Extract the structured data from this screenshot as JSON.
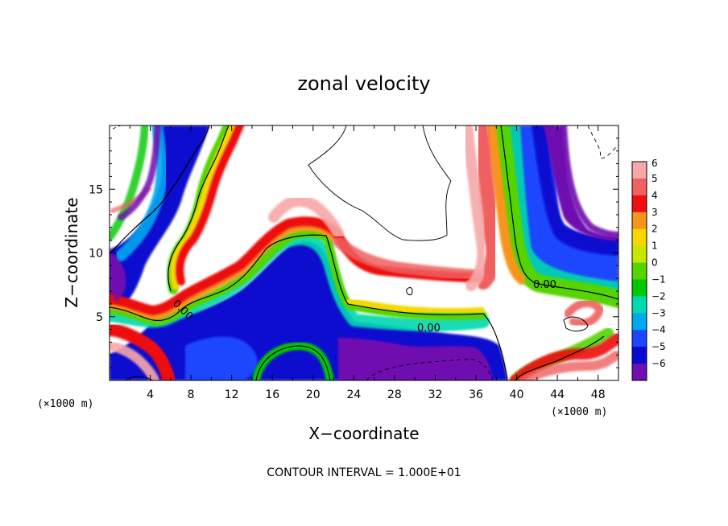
{
  "chart_data": {
    "type": "heatmap",
    "title": "zonal velocity",
    "xlabel": "X−coordinate",
    "ylabel": "Z−coordinate",
    "x_unit": "(×1000 m)",
    "x_unit_right": "(×1000 m)",
    "xlim": [
      0,
      50
    ],
    "ylim": [
      0,
      20
    ],
    "xticks": [
      4,
      8,
      12,
      16,
      20,
      24,
      28,
      32,
      36,
      40,
      44,
      48
    ],
    "yticks": [
      5,
      10,
      15
    ],
    "colorbar": {
      "levels": [
        6,
        5,
        4,
        3,
        2,
        1,
        0,
        -1,
        -2,
        -3,
        -4,
        -5,
        -6
      ],
      "labels": [
        "6",
        "5",
        "4",
        "3",
        "2",
        "1",
        "0",
        "−1",
        "−2",
        "−3",
        "−4",
        "−5",
        "−6"
      ],
      "colors": [
        "#f7a8a8",
        "#f06060",
        "#ee1010",
        "#f7941d",
        "#f5d800",
        "#c8e600",
        "#55d400",
        "#00c800",
        "#00d8b0",
        "#00a8f0",
        "#1e46ff",
        "#0a0ad0",
        "#7010b0"
      ]
    },
    "contour_labels": [
      "0.00",
      "0.00",
      "0.00"
    ],
    "note": "CONTOUR INTERVAL = 1.000E+01"
  },
  "colors": {
    "background": "#ffffff",
    "axis": "#000000"
  }
}
